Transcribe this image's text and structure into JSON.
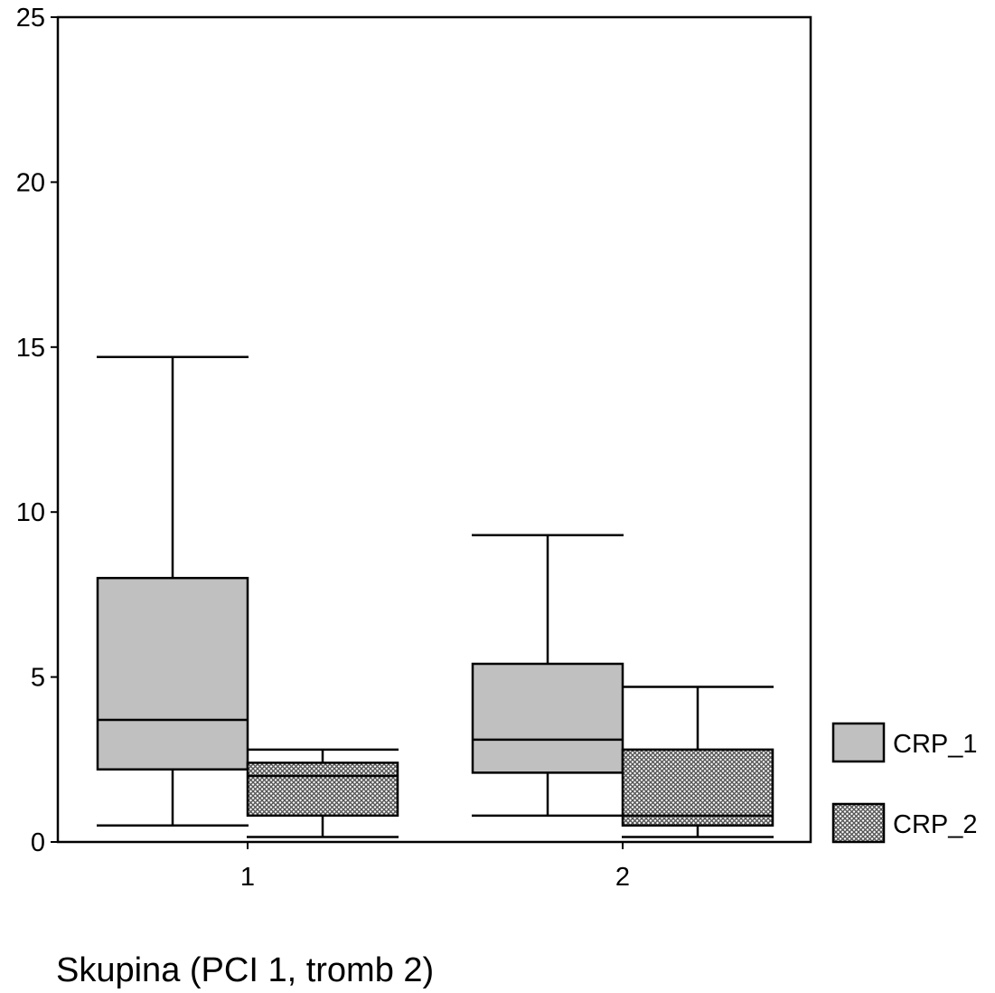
{
  "chart_data": {
    "type": "box",
    "title": "",
    "xlabel": "Skupina (PCI 1, tromb 2)",
    "ylabel": "",
    "ylim": [
      0,
      25
    ],
    "yticks": [
      0,
      5,
      10,
      15,
      20,
      25
    ],
    "grid": false,
    "legend_position": "right",
    "categories": [
      "1",
      "2"
    ],
    "series": [
      {
        "name": "CRP_1",
        "fill": "#c0c0c0",
        "pattern": "solid",
        "boxes": [
          {
            "category": "1",
            "whisker_low": 0.5,
            "q1": 2.2,
            "median": 3.7,
            "q3": 8.0,
            "whisker_high": 14.7
          },
          {
            "category": "2",
            "whisker_low": 0.8,
            "q1": 2.1,
            "median": 3.1,
            "q3": 5.4,
            "whisker_high": 9.3
          }
        ]
      },
      {
        "name": "CRP_2",
        "fill": "#8a8a8a",
        "pattern": "crosshatch",
        "boxes": [
          {
            "category": "1",
            "whisker_low": 0.15,
            "q1": 0.8,
            "median": 2.0,
            "q3": 2.4,
            "whisker_high": 2.8
          },
          {
            "category": "2",
            "whisker_low": 0.15,
            "q1": 0.5,
            "median": 0.8,
            "q3": 2.8,
            "whisker_high": 4.7
          }
        ]
      }
    ]
  }
}
